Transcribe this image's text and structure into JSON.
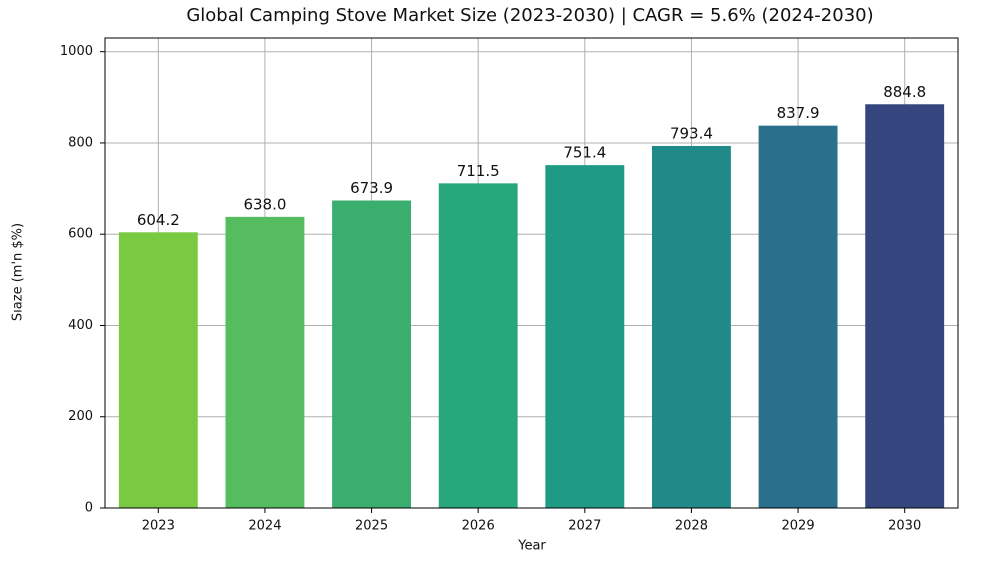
{
  "chart_data": {
    "type": "bar",
    "title": "Global Camping Stove Market Size (2023-2030) | CAGR = 5.6% (2024-2030)",
    "x_label": "Year",
    "y_label": "Sıaze (m'n $%)",
    "categories": [
      "2023",
      "2024",
      "2025",
      "2026",
      "2027",
      "2028",
      "2029",
      "2030"
    ],
    "values": [
      604.2,
      638.0,
      673.9,
      711.5,
      751.4,
      793.4,
      837.9,
      884.8
    ],
    "value_labels": [
      "604.2",
      "638.0",
      "673.9",
      "711.5",
      "751.4",
      "793.4",
      "837.9",
      "884.8"
    ],
    "colors": [
      "#7ac943",
      "#55bd5f",
      "#3aae6f",
      "#26a87c",
      "#1e9a85",
      "#1f8a88",
      "#2a6f8c",
      "#35467f"
    ],
    "ylim": [
      0,
      1030
    ],
    "yticks": [
      0,
      200,
      400,
      600,
      800,
      1000
    ],
    "grid": true
  }
}
